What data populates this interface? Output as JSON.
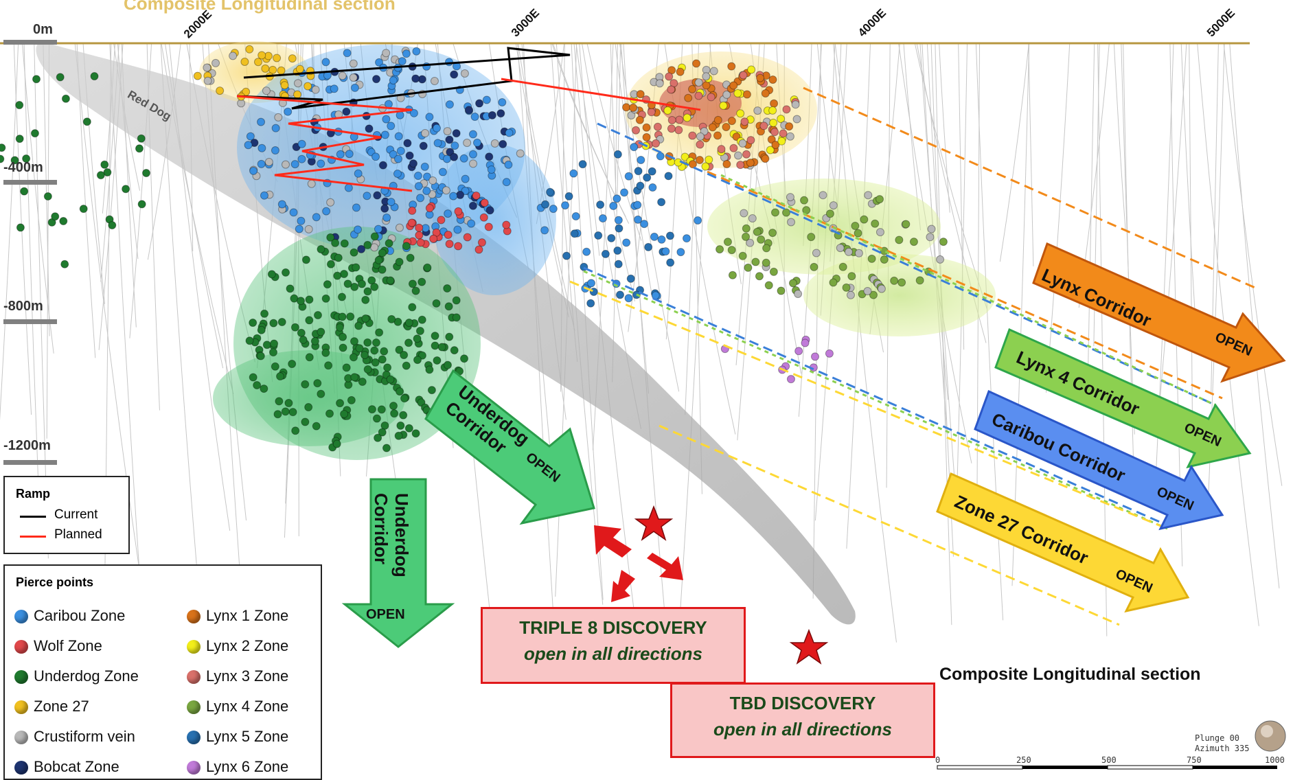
{
  "header": {
    "faded_title": "Composite Longitudinal section"
  },
  "eastings": [
    "2000E",
    "3000E",
    "4000E",
    "5000E"
  ],
  "depths": [
    "0m",
    "-400m",
    "-800m",
    "-1200m"
  ],
  "red_dog_label": "Red Dog",
  "corridors": [
    {
      "name": "Lynx Corridor",
      "status": "OPEN",
      "color": "#f28a1a"
    },
    {
      "name": "Lynx 4 Corridor",
      "status": "OPEN",
      "color": "#8cd050"
    },
    {
      "name": "Caribou Corridor",
      "status": "OPEN",
      "color": "#5a8ef0"
    },
    {
      "name": "Zone 27 Corridor",
      "status": "OPEN",
      "color": "#fdd835"
    },
    {
      "name": "Underdog Corridor",
      "status": "OPEN",
      "color": "#4ccb78"
    },
    {
      "name": "Underdog Corridor",
      "status": "OPEN",
      "color": "#4ccb78"
    }
  ],
  "ramp_legend": {
    "title": "Ramp",
    "items": [
      {
        "label": "Current",
        "color": "#000000"
      },
      {
        "label": "Planned",
        "color": "#ff2a1a"
      }
    ]
  },
  "pierce_legend": {
    "title": "Pierce points",
    "items": [
      {
        "label": "Caribou Zone",
        "color": "#3a8fe0"
      },
      {
        "label": "Wolf Zone",
        "color": "#e0484a"
      },
      {
        "label": "Underdog Zone",
        "color": "#1f7a2e"
      },
      {
        "label": "Zone 27",
        "color": "#f0c020"
      },
      {
        "label": "Crustiform vein",
        "color": "#b8b8b8"
      },
      {
        "label": "Bobcat Zone",
        "color": "#1e3470"
      },
      {
        "label": "Lynx 1 Zone",
        "color": "#d8721a"
      },
      {
        "label": "Lynx 2 Zone",
        "color": "#f2ee1a"
      },
      {
        "label": "Lynx 3 Zone",
        "color": "#d9706a"
      },
      {
        "label": "Lynx 4 Zone",
        "color": "#79a640"
      },
      {
        "label": "Lynx 5 Zone",
        "color": "#2770b0"
      },
      {
        "label": "Lynx 6 Zone",
        "color": "#c07ad8"
      }
    ]
  },
  "discoveries": [
    {
      "title": "TRIPLE 8 DISCOVERY",
      "subtitle": "open in all directions"
    },
    {
      "title": "TBD DISCOVERY",
      "subtitle": "open in all directions"
    }
  ],
  "caption": "Composite Longitudinal section",
  "orientation": {
    "plunge": "Plunge 00",
    "azimuth": "Azimuth 335"
  },
  "scale_ticks": [
    "0",
    "250",
    "500",
    "750",
    "1000"
  ]
}
